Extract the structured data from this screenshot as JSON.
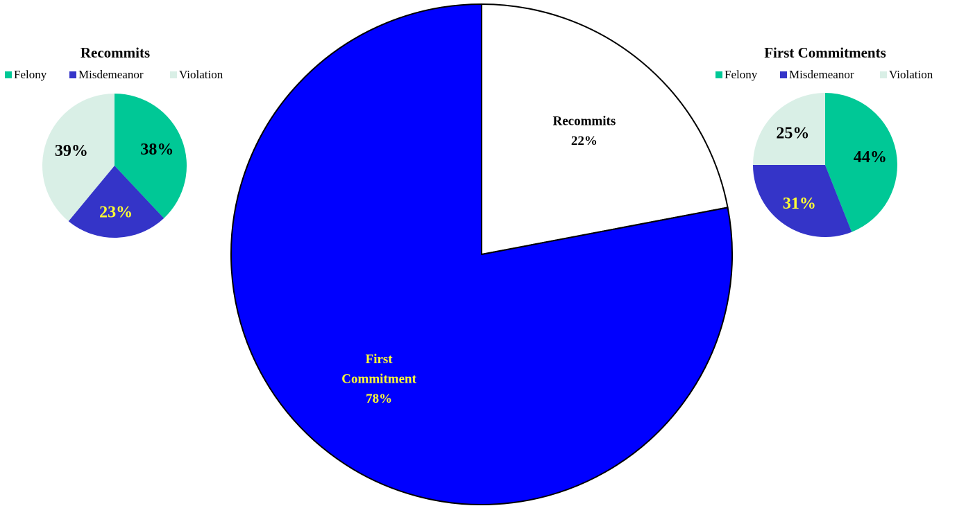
{
  "chart_data": [
    {
      "type": "pie",
      "title": "",
      "categories": [
        "Recommits",
        "First Commitment"
      ],
      "values": [
        22,
        78
      ],
      "value_unit": "%",
      "colors": {
        "Recommits": "#ffffff",
        "First Commitment": "#0000ff"
      },
      "label_colors": {
        "Recommits": "#000000",
        "First Commitment": "#ffff33"
      },
      "data_labels": [
        {
          "category": "Recommits",
          "lines": [
            "Recommits",
            "22%"
          ]
        },
        {
          "category": "First Commitment",
          "lines": [
            "First",
            "Commitment",
            "78%"
          ]
        }
      ],
      "start_angle_deg": 0,
      "direction": "clockwise",
      "legend": "none",
      "border_color": "#000000"
    },
    {
      "type": "pie",
      "title": "Recommits",
      "categories": [
        "Felony",
        "Misdemeanor",
        "Violation"
      ],
      "values": [
        38,
        23,
        39
      ],
      "value_unit": "%",
      "colors": {
        "Felony": "#00c896",
        "Misdemeanor": "#3434c8",
        "Violation": "#d9efe6"
      },
      "label_colors": {
        "Felony": "#000000",
        "Misdemeanor": "#ffff33",
        "Violation": "#000000"
      },
      "data_labels": [
        "38%",
        "23%",
        "39%"
      ],
      "start_angle_deg": 0,
      "direction": "clockwise",
      "legend": "top",
      "legend_entries": [
        "Felony",
        "Misdemeanor",
        "Violation"
      ]
    },
    {
      "type": "pie",
      "title": "First Commitments",
      "categories": [
        "Felony",
        "Misdemeanor",
        "Violation"
      ],
      "values": [
        44,
        31,
        25
      ],
      "value_unit": "%",
      "colors": {
        "Felony": "#00c896",
        "Misdemeanor": "#3434c8",
        "Violation": "#d9efe6"
      },
      "label_colors": {
        "Felony": "#000000",
        "Misdemeanor": "#ffff33",
        "Violation": "#000000"
      },
      "data_labels": [
        "44%",
        "31%",
        "25%"
      ],
      "start_angle_deg": 0,
      "direction": "clockwise",
      "legend": "top",
      "legend_entries": [
        "Felony",
        "Misdemeanor",
        "Violation"
      ]
    }
  ]
}
